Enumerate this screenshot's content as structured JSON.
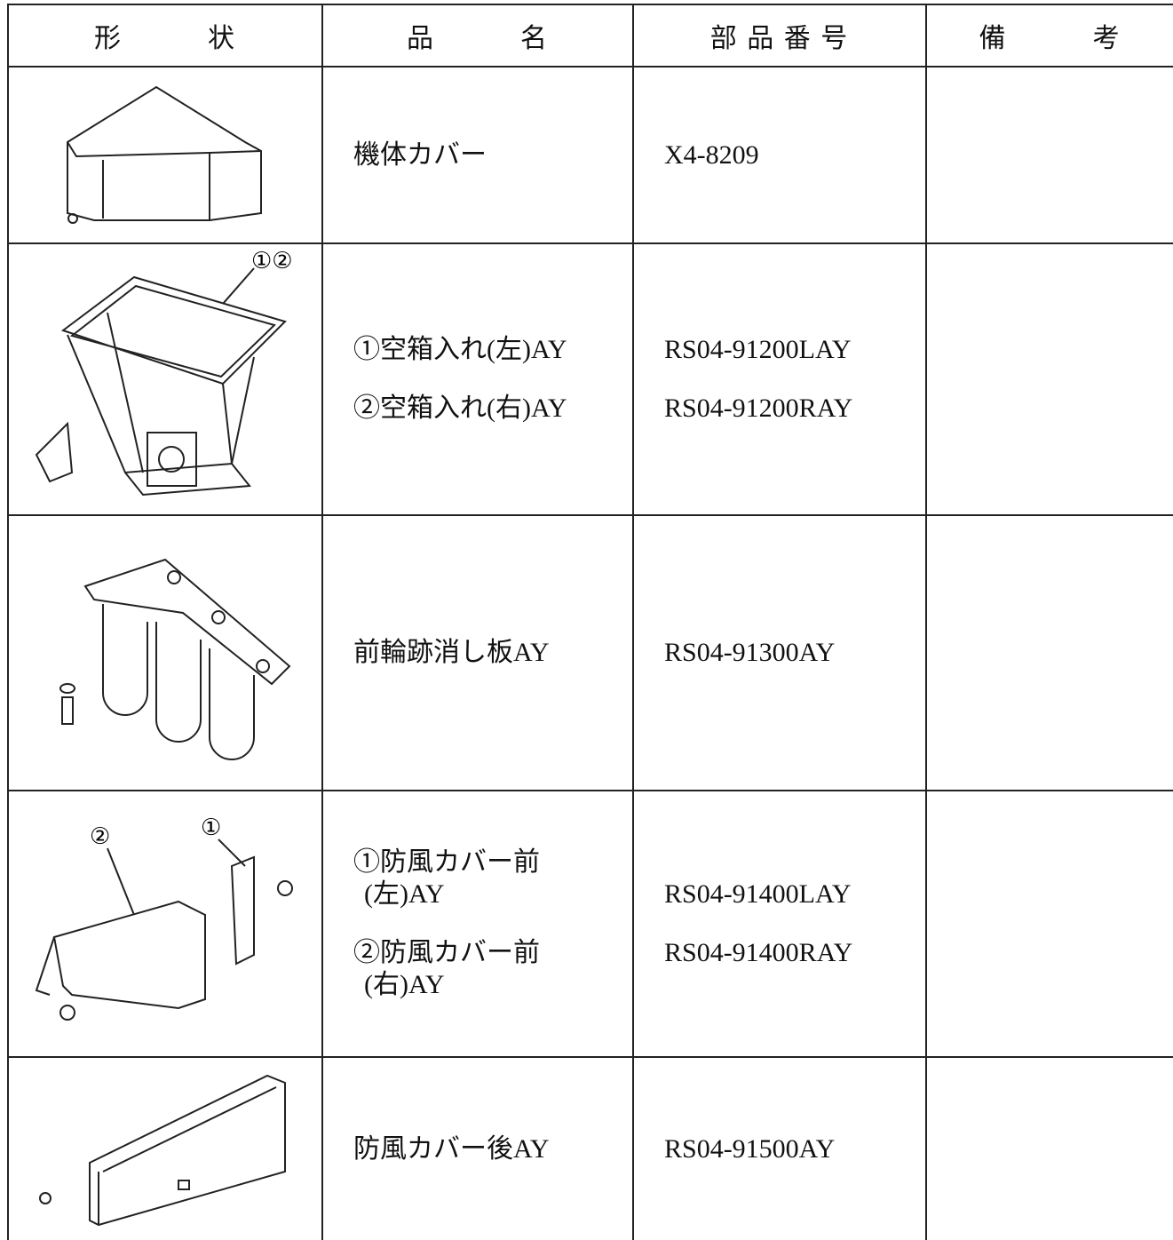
{
  "table": {
    "header": [
      "形　　　状",
      "品　　　名",
      "部 品 番 号",
      "備　　　考"
    ],
    "rows": [
      {
        "names": [
          "機体カバー"
        ],
        "part_numbers": [
          "X4-8209"
        ]
      },
      {
        "callouts": [
          "①②"
        ],
        "names": [
          "①空箱入れ(左)AY",
          "②空箱入れ(右)AY"
        ],
        "part_numbers": [
          "RS04-91200LAY",
          "RS04-91200RAY"
        ]
      },
      {
        "names": [
          "前輪跡消し板AY"
        ],
        "part_numbers": [
          "RS04-91300AY"
        ]
      },
      {
        "callouts": [
          "①",
          "②"
        ],
        "names": [
          "①防風カバー前",
          "(左)AY",
          "②防風カバー前",
          "(右)AY"
        ],
        "part_numbers": [
          "RS04-91400LAY",
          "RS04-91400RAY"
        ]
      },
      {
        "names": [
          "防風カバー後AY"
        ],
        "part_numbers": [
          "RS04-91500AY"
        ]
      }
    ]
  }
}
